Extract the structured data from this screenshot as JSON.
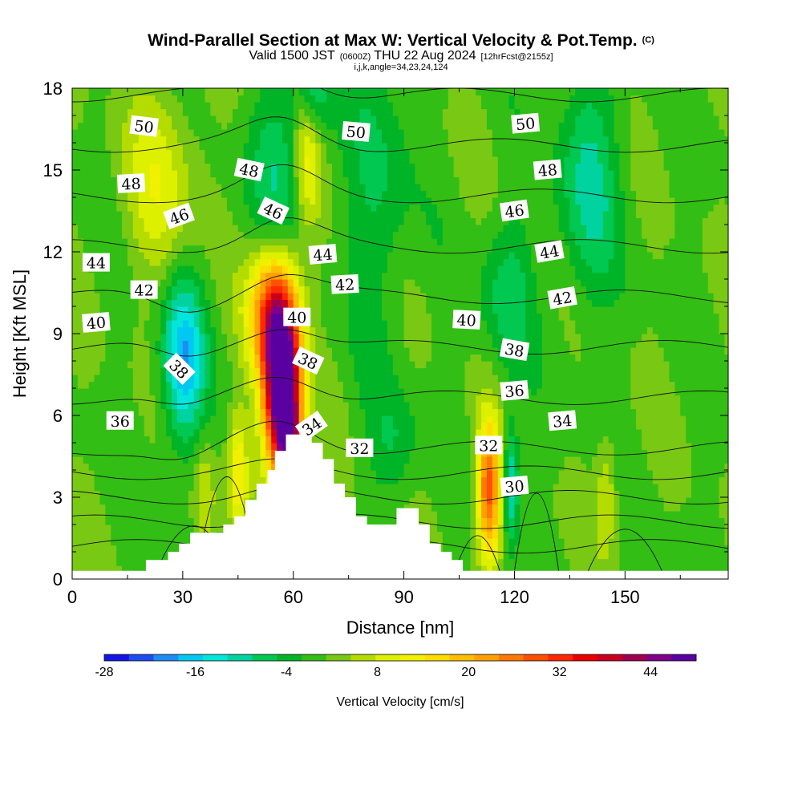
{
  "chart_data": {
    "type": "heatmap",
    "title": "Wind-Parallel Section at Max W: Vertical Velocity & Pot.Temp.",
    "title_mark": "(C)",
    "subtitle": {
      "valid": "Valid 1500 JST",
      "zulu": "(0600Z)",
      "date": "THU 22 Aug 2024",
      "forecast": "[12hrFcst@2155z]",
      "indices": "i,j,k,angle=34,23,24,124"
    },
    "xlabel": "Distance [nm]",
    "ylabel": "Height [Kft MSL]",
    "xlim": [
      0,
      178
    ],
    "ylim": [
      0,
      18
    ],
    "xticks": [
      "0",
      "30",
      "60",
      "90",
      "120",
      "150"
    ],
    "xtick_values": [
      0,
      30,
      60,
      90,
      120,
      150
    ],
    "yticks": [
      "0",
      "3",
      "6",
      "9",
      "12",
      "15",
      "18"
    ],
    "ytick_values": [
      0,
      3,
      6,
      9,
      12,
      15,
      18
    ],
    "colorbar": {
      "label": "Vertical Velocity [cm/s]",
      "ticks": [
        "-28",
        "-16",
        "-4",
        "8",
        "20",
        "32",
        "44"
      ],
      "tick_values": [
        -28,
        -16,
        -4,
        8,
        20,
        32,
        44
      ],
      "min": -28,
      "max": 50,
      "step": 3,
      "colors": [
        "#1414e6",
        "#1e4cf0",
        "#1e8cf5",
        "#00c8f0",
        "#00e6dc",
        "#00d2a0",
        "#00c850",
        "#00b428",
        "#32be14",
        "#78c814",
        "#b4dc00",
        "#dcf000",
        "#f0f000",
        "#ffdc00",
        "#ffbe00",
        "#ffa000",
        "#ff7800",
        "#ff5000",
        "#ff2800",
        "#eb0000",
        "#c8001e",
        "#a00050",
        "#80008c",
        "#5a00a0"
      ]
    },
    "terrain": [
      [
        0,
        0.3
      ],
      [
        20,
        0.3
      ],
      [
        20,
        0.7
      ],
      [
        26,
        0.7
      ],
      [
        26,
        1.0
      ],
      [
        29,
        1.0
      ],
      [
        29,
        1.3
      ],
      [
        32,
        1.3
      ],
      [
        32,
        1.7
      ],
      [
        41,
        1.7
      ],
      [
        41,
        2.0
      ],
      [
        44,
        2.0
      ],
      [
        44,
        2.3
      ],
      [
        47,
        2.3
      ],
      [
        47,
        2.9
      ],
      [
        50,
        2.9
      ],
      [
        50,
        3.5
      ],
      [
        53,
        3.5
      ],
      [
        53,
        4.0
      ],
      [
        55,
        4.0
      ],
      [
        55,
        4.7
      ],
      [
        58,
        4.7
      ],
      [
        58,
        5.3
      ],
      [
        65,
        5.3
      ],
      [
        65,
        5.0
      ],
      [
        68,
        5.0
      ],
      [
        68,
        4.4
      ],
      [
        71,
        4.4
      ],
      [
        71,
        3.5
      ],
      [
        74,
        3.5
      ],
      [
        74,
        3.0
      ],
      [
        77,
        3.0
      ],
      [
        77,
        2.3
      ],
      [
        80,
        2.3
      ],
      [
        80,
        2.0
      ],
      [
        88,
        2.0
      ],
      [
        88,
        2.6
      ],
      [
        94,
        2.6
      ],
      [
        94,
        2.0
      ],
      [
        97,
        2.0
      ],
      [
        97,
        1.3
      ],
      [
        100,
        1.3
      ],
      [
        100,
        1.0
      ],
      [
        103,
        1.0
      ],
      [
        103,
        0.7
      ],
      [
        106,
        0.7
      ],
      [
        106,
        0.3
      ],
      [
        178,
        0.3
      ]
    ],
    "contour_levels": [
      30,
      32,
      34,
      36,
      38,
      40,
      42,
      44,
      46,
      48,
      50
    ],
    "contour_labels": [
      {
        "text": "50",
        "x": 19.5,
        "y": 16.6,
        "angle": 7
      },
      {
        "text": "48",
        "x": 16.0,
        "y": 14.5,
        "angle": -3
      },
      {
        "text": "46",
        "x": 29.0,
        "y": 13.3,
        "angle": -20
      },
      {
        "text": "44",
        "x": 6.5,
        "y": 11.6,
        "angle": 0
      },
      {
        "text": "42",
        "x": 19.5,
        "y": 10.6,
        "angle": 0
      },
      {
        "text": "40",
        "x": 6.5,
        "y": 9.4,
        "angle": -5
      },
      {
        "text": "38",
        "x": 29.0,
        "y": 7.7,
        "angle": 45
      },
      {
        "text": "36",
        "x": 13.0,
        "y": 5.8,
        "angle": 0
      },
      {
        "text": "48",
        "x": 48.0,
        "y": 15.0,
        "angle": 12
      },
      {
        "text": "46",
        "x": 54.5,
        "y": 13.5,
        "angle": 25
      },
      {
        "text": "44",
        "x": 68.0,
        "y": 11.9,
        "angle": -5
      },
      {
        "text": "42",
        "x": 74.0,
        "y": 10.8,
        "angle": -3
      },
      {
        "text": "40",
        "x": 61.0,
        "y": 9.6,
        "angle": 0
      },
      {
        "text": "38",
        "x": 64.0,
        "y": 8.0,
        "angle": 25
      },
      {
        "text": "34",
        "x": 65.0,
        "y": 5.6,
        "angle": -35
      },
      {
        "text": "32",
        "x": 78.0,
        "y": 4.8,
        "angle": 0
      },
      {
        "text": "50",
        "x": 77.0,
        "y": 16.4,
        "angle": 5
      },
      {
        "text": "50",
        "x": 123.0,
        "y": 16.7,
        "angle": -5
      },
      {
        "text": "48",
        "x": 129.0,
        "y": 15.0,
        "angle": -5
      },
      {
        "text": "46",
        "x": 120.0,
        "y": 13.5,
        "angle": -8
      },
      {
        "text": "44",
        "x": 129.5,
        "y": 12.0,
        "angle": -10
      },
      {
        "text": "42",
        "x": 133.0,
        "y": 10.3,
        "angle": -10
      },
      {
        "text": "40",
        "x": 107.0,
        "y": 9.5,
        "angle": 3
      },
      {
        "text": "38",
        "x": 120.0,
        "y": 8.4,
        "angle": 10
      },
      {
        "text": "36",
        "x": 120.0,
        "y": 6.9,
        "angle": -5
      },
      {
        "text": "34",
        "x": 133.0,
        "y": 5.8,
        "angle": -5
      },
      {
        "text": "32",
        "x": 113.0,
        "y": 4.9,
        "angle": 0
      },
      {
        "text": "30",
        "x": 120.0,
        "y": 3.4,
        "angle": -5
      }
    ]
  }
}
